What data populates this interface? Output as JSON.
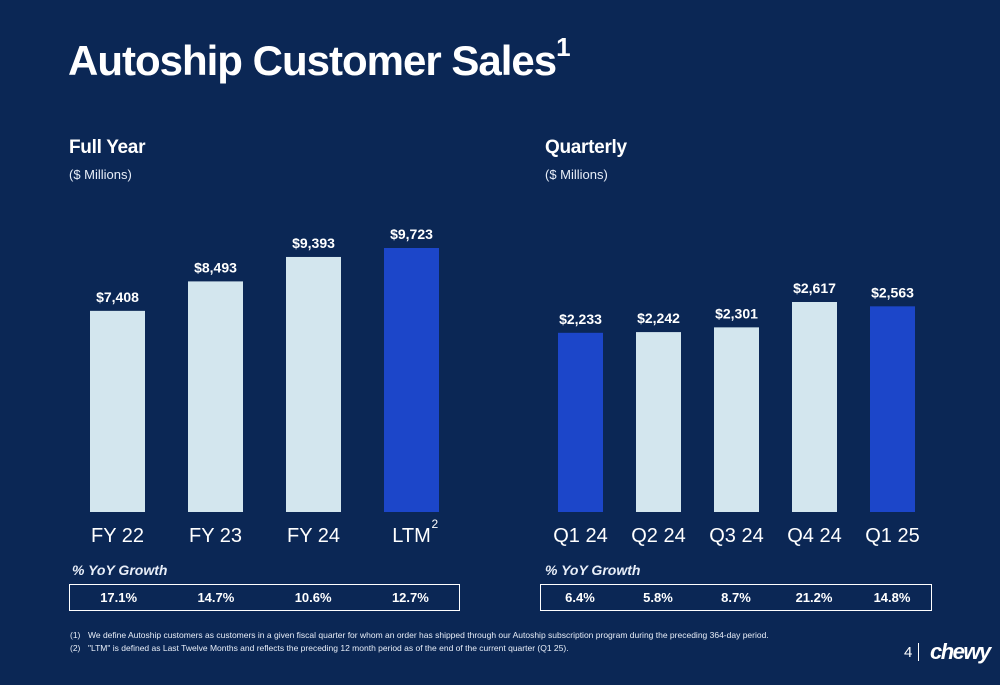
{
  "title": "Autoship Customer Sales",
  "title_sup": "1",
  "colors": {
    "background": "#0b2755",
    "bar_light": "#d3e6ee",
    "bar_highlight": "#1c46c9"
  },
  "chart_data": [
    {
      "type": "bar",
      "title": "Full Year",
      "subtitle": "($ Millions)",
      "categories": [
        "FY 22",
        "FY 23",
        "FY 24",
        "LTM"
      ],
      "category_superscripts": [
        "",
        "",
        "",
        "2"
      ],
      "values": [
        7408,
        8493,
        9393,
        9723
      ],
      "value_labels": [
        "$7,408",
        "$8,493",
        "$9,393",
        "$9,723"
      ],
      "highlight": [
        false,
        false,
        false,
        true
      ],
      "ylim": [
        0,
        9723
      ]
    },
    {
      "type": "bar",
      "title": "Quarterly",
      "subtitle": "($ Millions)",
      "categories": [
        "Q1 24",
        "Q2 24",
        "Q3 24",
        "Q4 24",
        "Q1 25"
      ],
      "category_superscripts": [
        "",
        "",
        "",
        "",
        ""
      ],
      "values": [
        2233,
        2242,
        2301,
        2617,
        2563
      ],
      "value_labels": [
        "$2,233",
        "$2,242",
        "$2,301",
        "$2,617",
        "$2,563"
      ],
      "highlight": [
        true,
        false,
        false,
        false,
        true
      ],
      "ylim": [
        0,
        2617
      ]
    }
  ],
  "yoy": {
    "full_year": {
      "title": "% YoY Growth",
      "values": [
        "17.1%",
        "14.7%",
        "10.6%",
        "12.7%"
      ]
    },
    "quarterly": {
      "title": "% YoY Growth",
      "values": [
        "6.4%",
        "5.8%",
        "8.7%",
        "21.2%",
        "14.8%"
      ]
    }
  },
  "footnotes": [
    {
      "num": "(1)",
      "text": "We define Autoship customers as customers in a given fiscal quarter for whom an order has shipped through our Autoship subscription program during the preceding 364-day period."
    },
    {
      "num": "(2)",
      "text": "\"LTM\" is defined as Last Twelve Months and reflects the preceding 12 month period as of the end of the current quarter (Q1 25)."
    }
  ],
  "page_number": "4",
  "logo_text": "chewy"
}
